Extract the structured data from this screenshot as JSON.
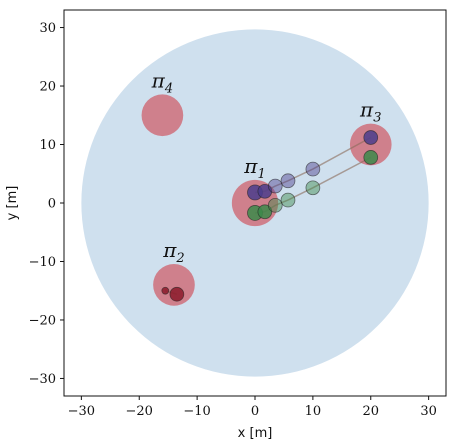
{
  "chart_data": {
    "type": "scatter",
    "xlabel": "x [m]",
    "ylabel": "y [m]",
    "xlim": [
      -33,
      33
    ],
    "ylim": [
      -33,
      33
    ],
    "xticks": [
      "−30",
      "−20",
      "−10",
      "0",
      "10",
      "20",
      "30"
    ],
    "yticks": [
      "30",
      "20",
      "10",
      "0",
      "−10",
      "−20",
      "−30"
    ],
    "xtick_values": [
      -30,
      -20,
      -10,
      0,
      10,
      20,
      30
    ],
    "ytick_values": [
      30,
      20,
      10,
      0,
      -10,
      -20,
      -30
    ],
    "arena": {
      "center": [
        0,
        0
      ],
      "radius": 30,
      "color": "#cfe0ee"
    },
    "regions": [
      {
        "label": "π",
        "sub": "1",
        "center": [
          0,
          0
        ],
        "radius": 4.0,
        "color": "#cf6f7a"
      },
      {
        "label": "π",
        "sub": "2",
        "center": [
          -14,
          -14
        ],
        "radius": 3.6,
        "color": "#cf6f7a"
      },
      {
        "label": "π",
        "sub": "3",
        "center": [
          20,
          10
        ],
        "radius": 3.6,
        "color": "#cf6f7a"
      },
      {
        "label": "π",
        "sub": "4",
        "center": [
          -16,
          15
        ],
        "radius": 3.6,
        "color": "#cf6f7a"
      }
    ],
    "series": [
      {
        "color": "#4b3d8c",
        "points": [
          {
            "x": 0,
            "y": 1.8,
            "r": 1.3
          },
          {
            "x": 1.7,
            "y": 2.0,
            "r": 1.2
          },
          {
            "x": 3.5,
            "y": 2.9,
            "r": 1.2
          },
          {
            "x": 5.7,
            "y": 3.8,
            "r": 1.2
          },
          {
            "x": 10,
            "y": 5.8,
            "r": 1.2
          },
          {
            "x": 20,
            "y": 11.2,
            "r": 1.2
          }
        ]
      },
      {
        "color": "#3c8a4a",
        "points": [
          {
            "x": 0,
            "y": -1.7,
            "r": 1.3
          },
          {
            "x": 1.7,
            "y": -1.5,
            "r": 1.2
          },
          {
            "x": 3.5,
            "y": -0.4,
            "r": 1.2
          },
          {
            "x": 5.7,
            "y": 0.5,
            "r": 1.2
          },
          {
            "x": 10,
            "y": 2.6,
            "r": 1.2
          },
          {
            "x": 20,
            "y": 7.8,
            "r": 1.2
          }
        ]
      },
      {
        "color": "#8b1a2a",
        "points": [
          {
            "x": -15.5,
            "y": -15,
            "r": 0.6
          },
          {
            "x": -13.5,
            "y": -15.6,
            "r": 1.2
          }
        ]
      }
    ]
  }
}
